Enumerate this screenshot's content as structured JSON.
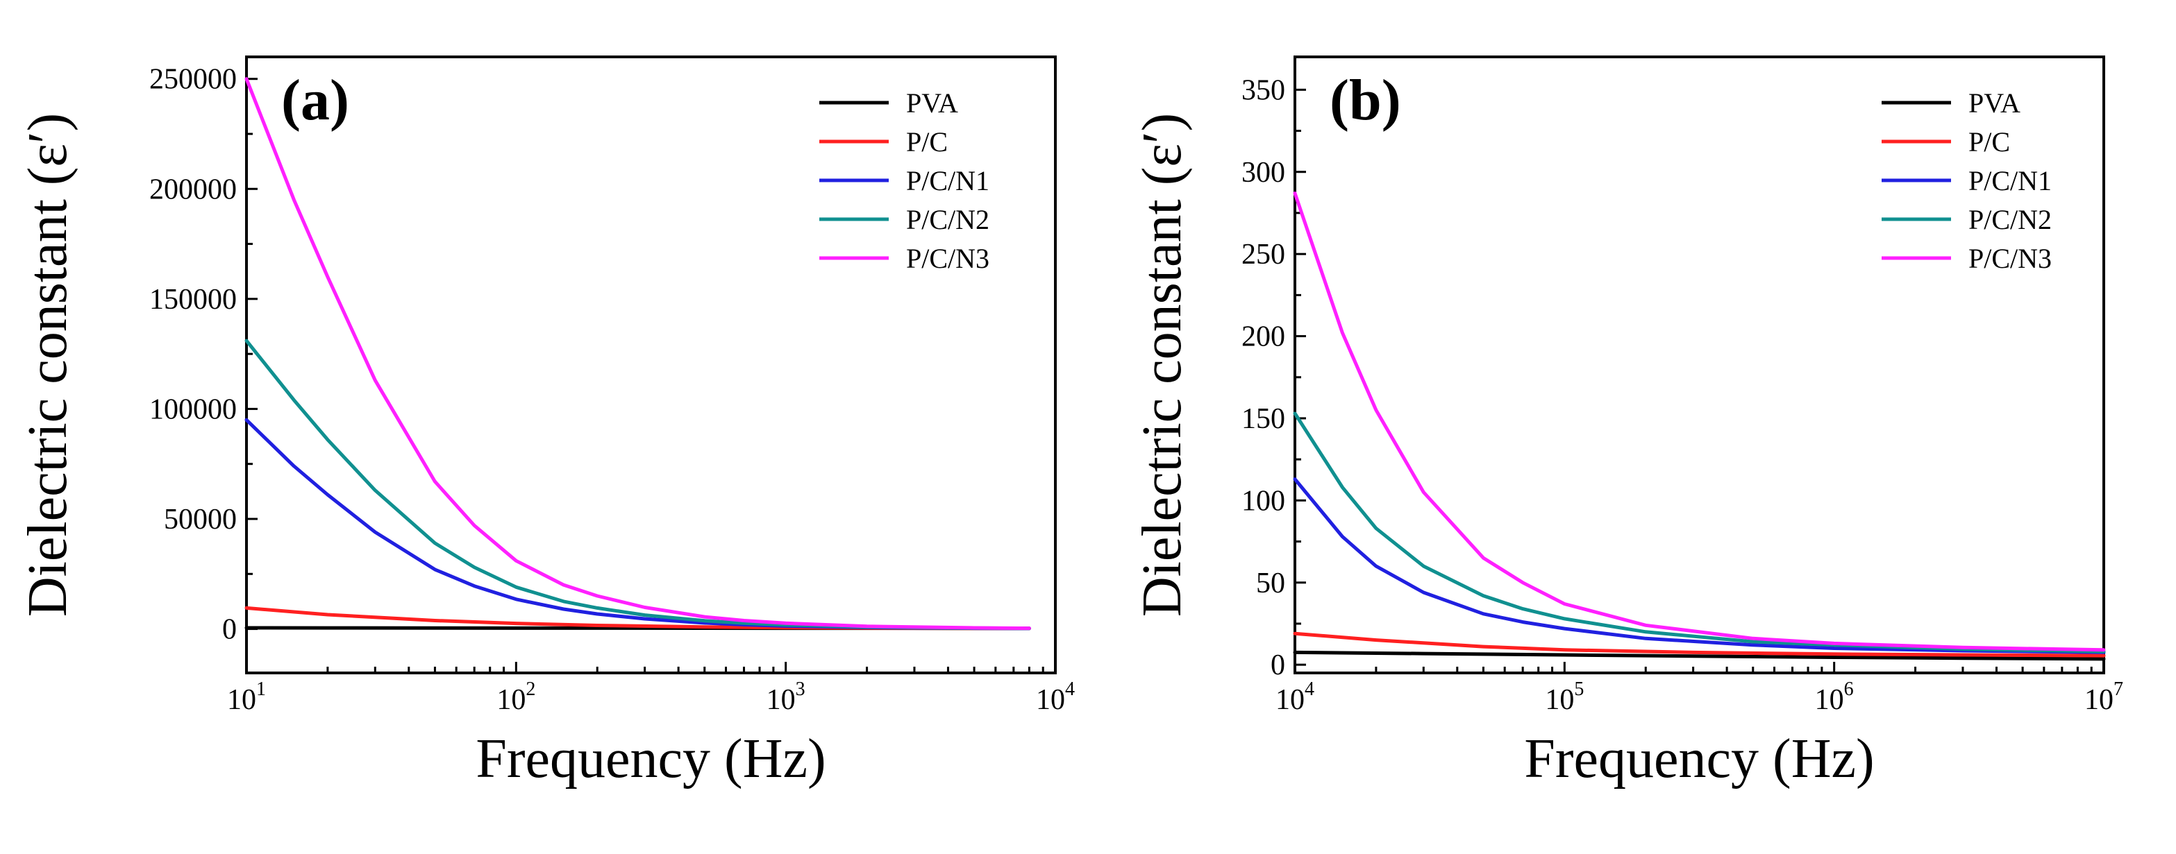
{
  "chart_data": [
    {
      "type": "line",
      "panel_label": "(a)",
      "xlabel": "Frequency (Hz)",
      "ylabel": "Dielectric constant (ε′)",
      "xscale": "log",
      "xlim": [
        10,
        10000
      ],
      "ylim": [
        -20000,
        260000
      ],
      "x_ticks": [
        {
          "base": "10",
          "exp": "1"
        },
        {
          "base": "10",
          "exp": "2"
        },
        {
          "base": "10",
          "exp": "3"
        },
        {
          "base": "10",
          "exp": "4"
        }
      ],
      "y_ticks": [
        "0",
        "50000",
        "100000",
        "150000",
        "200000",
        "250000"
      ],
      "legend_position": "top-right",
      "series": [
        {
          "name": "PVA",
          "color": "#000000",
          "x": [
            10,
            20,
            50,
            100,
            200,
            500,
            1000,
            2000,
            5000,
            8000
          ],
          "values": [
            500,
            450,
            400,
            380,
            360,
            340,
            320,
            300,
            280,
            270
          ]
        },
        {
          "name": "P/C",
          "color": "#ff2020",
          "x": [
            10,
            20,
            50,
            100,
            200,
            500,
            1000,
            2000,
            5000,
            8000
          ],
          "values": [
            9500,
            6500,
            3800,
            2500,
            1600,
            900,
            600,
            400,
            250,
            200
          ]
        },
        {
          "name": "P/C/N1",
          "color": "#2020e0",
          "x": [
            10,
            15,
            20,
            30,
            50,
            70,
            100,
            150,
            200,
            300,
            500,
            700,
            1000,
            2000,
            5000,
            8000
          ],
          "values": [
            95000,
            74000,
            61000,
            44000,
            27000,
            19500,
            13500,
            9000,
            6800,
            4600,
            2700,
            1900,
            1300,
            700,
            300,
            200
          ]
        },
        {
          "name": "P/C/N2",
          "color": "#109090",
          "x": [
            10,
            15,
            20,
            30,
            50,
            70,
            100,
            150,
            200,
            300,
            500,
            700,
            1000,
            2000,
            5000,
            8000
          ],
          "values": [
            131000,
            104000,
            86000,
            63000,
            39000,
            28000,
            19000,
            12500,
            9500,
            6300,
            3700,
            2600,
            1800,
            900,
            400,
            250
          ]
        },
        {
          "name": "P/C/N3",
          "color": "#ff20ff",
          "x": [
            10,
            15,
            20,
            30,
            50,
            70,
            100,
            150,
            200,
            300,
            500,
            700,
            1000,
            2000,
            5000,
            8000
          ],
          "values": [
            250000,
            195000,
            160000,
            113000,
            67000,
            47000,
            31000,
            20000,
            15000,
            9800,
            5500,
            3800,
            2600,
            1200,
            500,
            300
          ]
        }
      ]
    },
    {
      "type": "line",
      "panel_label": "(b)",
      "xlabel": "Frequency (Hz)",
      "ylabel": "Dielectric constant (ε′)",
      "xscale": "log",
      "xlim": [
        10000,
        10000000
      ],
      "ylim": [
        -5,
        370
      ],
      "x_ticks": [
        {
          "base": "10",
          "exp": "4"
        },
        {
          "base": "10",
          "exp": "5"
        },
        {
          "base": "10",
          "exp": "6"
        },
        {
          "base": "10",
          "exp": "7"
        }
      ],
      "y_ticks": [
        "0",
        "50",
        "100",
        "150",
        "200",
        "250",
        "300",
        "350"
      ],
      "legend_position": "top-right",
      "series": [
        {
          "name": "PVA",
          "color": "#000000",
          "x": [
            10000,
            30000,
            100000,
            300000,
            1000000,
            3000000,
            10000000
          ],
          "values": [
            7.5,
            6.8,
            6.0,
            5.2,
            4.5,
            4.0,
            3.5
          ]
        },
        {
          "name": "P/C",
          "color": "#ff2020",
          "x": [
            10000,
            20000,
            50000,
            100000,
            300000,
            1000000,
            3000000,
            10000000
          ],
          "values": [
            19,
            15,
            11,
            9,
            7.5,
            6.5,
            6,
            5.5
          ]
        },
        {
          "name": "P/C/N1",
          "color": "#2020e0",
          "x": [
            10000,
            15000,
            20000,
            30000,
            50000,
            70000,
            100000,
            200000,
            500000,
            1000000,
            3000000,
            10000000
          ],
          "values": [
            113,
            78,
            60,
            44,
            31,
            26,
            22,
            16,
            12,
            10,
            8.5,
            7.5
          ]
        },
        {
          "name": "P/C/N2",
          "color": "#109090",
          "x": [
            10000,
            15000,
            20000,
            30000,
            50000,
            70000,
            100000,
            200000,
            500000,
            1000000,
            3000000,
            10000000
          ],
          "values": [
            153,
            108,
            83,
            60,
            42,
            34,
            28,
            20,
            14,
            12,
            9.5,
            8
          ]
        },
        {
          "name": "P/C/N3",
          "color": "#ff20ff",
          "x": [
            10000,
            15000,
            20000,
            30000,
            50000,
            70000,
            100000,
            200000,
            500000,
            1000000,
            3000000,
            10000000
          ],
          "values": [
            287,
            202,
            155,
            105,
            65,
            50,
            37,
            24,
            16,
            13,
            10.5,
            9
          ]
        }
      ]
    }
  ]
}
